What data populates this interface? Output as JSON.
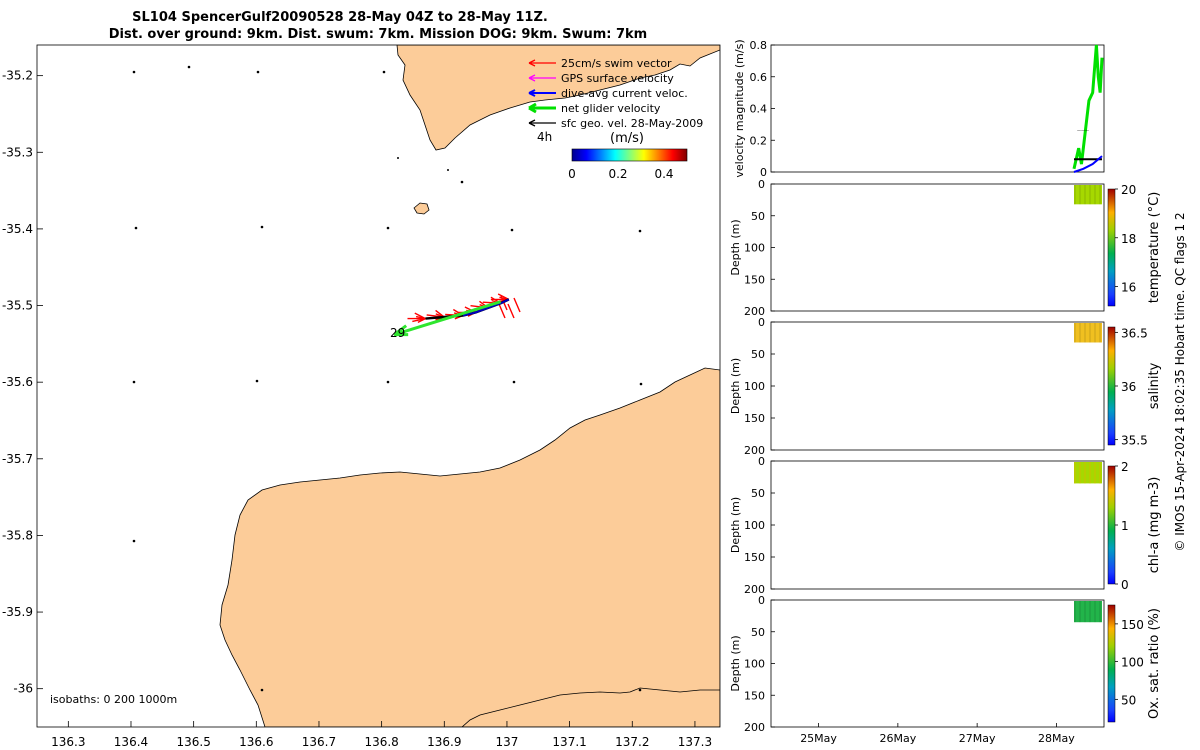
{
  "chart_data": [
    {
      "type": "map",
      "title_line1": "SL104 SpencerGulf20090528 28-May 04Z to 28-May 11Z.",
      "title_line2": "Dist. over ground: 9km. Dist. swum: 7km. Mission DOG: 9km. Swum: 7km",
      "x_ticks": [
        "136.3",
        "136.4",
        "136.5",
        "136.6",
        "136.7",
        "136.8",
        "136.9",
        "137",
        "137.1",
        "137.2",
        "137.3"
      ],
      "x_tick_values": [
        136.3,
        136.4,
        136.5,
        136.6,
        136.7,
        136.8,
        136.9,
        137.0,
        137.1,
        137.2,
        137.3
      ],
      "y_ticks": [
        "-35.2",
        "-35.3",
        "-35.4",
        "-35.5",
        "-35.6",
        "-35.7",
        "-35.8",
        "-35.9",
        "-36"
      ],
      "y_tick_values": [
        -35.2,
        -35.3,
        -35.4,
        -35.5,
        -35.6,
        -35.7,
        -35.8,
        -35.9,
        -36.0
      ],
      "xlim": [
        136.25,
        137.34
      ],
      "ylim": [
        -36.05,
        -35.16
      ],
      "legend": [
        {
          "label": "25cm/s swim vector",
          "color": "#ff0000"
        },
        {
          "label": "GPS surface velocity",
          "color": "#ff00ff"
        },
        {
          "label": "dive-avg current veloc.",
          "color": "#0000ff"
        },
        {
          "label": "net glider velocity",
          "color": "#00e000"
        },
        {
          "label": "sfc geo. vel. 28-May-2009",
          "color": "#000000"
        }
      ],
      "time_label": "4h",
      "colorbar_title": "(m/s)",
      "colorbar_ticks": [
        "0",
        "0.2",
        "0.4"
      ],
      "colorbar_range": [
        0,
        0.5
      ],
      "track_start_label": "29",
      "isobaths_label": "isobaths: 0   200  1000m",
      "track": [
        [
          137.003,
          -35.492
        ],
        [
          136.99,
          -35.497
        ],
        [
          136.97,
          -35.503
        ],
        [
          136.95,
          -35.509
        ],
        [
          136.93,
          -35.513
        ],
        [
          136.9,
          -35.515
        ],
        [
          136.87,
          -35.517
        ]
      ],
      "net_velocity_arrow": {
        "from": [
          136.99,
          -35.495
        ],
        "to": [
          136.82,
          -35.538
        ]
      },
      "land_color": "#fccc99"
    },
    {
      "type": "line",
      "ylabel": "velocity magnitude (m/s)",
      "y_ticks": [
        "0",
        "0.2",
        "0.4",
        "0.6",
        "0.8"
      ],
      "ylim": [
        0,
        0.8
      ],
      "series": [
        {
          "color": "#00e000",
          "values": [
            [
              28.2,
              0.02
            ],
            [
              28.25,
              0.15
            ],
            [
              28.28,
              0.05
            ],
            [
              28.32,
              0.25
            ],
            [
              28.36,
              0.45
            ],
            [
              28.4,
              0.5
            ],
            [
              28.42,
              0.65
            ],
            [
              28.44,
              0.8
            ],
            [
              28.46,
              0.6
            ],
            [
              28.48,
              0.5
            ],
            [
              28.5,
              0.72
            ]
          ]
        },
        {
          "color": "#000000",
          "values": [
            [
              28.2,
              0.08
            ],
            [
              28.5,
              0.08
            ]
          ]
        },
        {
          "color": "#0000ff",
          "values": [
            [
              28.2,
              0.0
            ],
            [
              28.3,
              0.02
            ],
            [
              28.4,
              0.05
            ],
            [
              28.5,
              0.1
            ]
          ]
        }
      ]
    },
    {
      "type": "heatmap",
      "ylabel": "Depth (m)",
      "y_ticks": [
        "0",
        "50",
        "100",
        "150",
        "200"
      ],
      "ylim": [
        200,
        0
      ],
      "colorbar_label": "temperature (°C)",
      "colorbar_ticks": [
        "20",
        "18",
        "16"
      ],
      "colorbar_range": [
        15.2,
        20.0
      ],
      "value": 18.2
    },
    {
      "type": "heatmap",
      "ylabel": "Depth (m)",
      "y_ticks": [
        "0",
        "50",
        "100",
        "150",
        "200"
      ],
      "ylim": [
        200,
        0
      ],
      "colorbar_label": "salinity",
      "colorbar_ticks": [
        "36.5",
        "36",
        "35.5"
      ],
      "colorbar_range": [
        35.45,
        36.55
      ],
      "value": 36.28
    },
    {
      "type": "heatmap",
      "ylabel": "Depth (m)",
      "y_ticks": [
        "0",
        "50",
        "100",
        "150",
        "200"
      ],
      "ylim": [
        200,
        0
      ],
      "colorbar_label": "chl-a (mg m-3)",
      "colorbar_ticks": [
        "2",
        "1",
        "0"
      ],
      "colorbar_range": [
        0,
        2
      ],
      "value": 1.3
    },
    {
      "type": "heatmap",
      "ylabel": "Depth (m)",
      "y_ticks": [
        "0",
        "50",
        "100",
        "150",
        "200"
      ],
      "ylim": [
        200,
        0
      ],
      "colorbar_label": "Ox. sat. ratio (%)",
      "colorbar_ticks": [
        "150",
        "100",
        "50"
      ],
      "colorbar_range": [
        20,
        175
      ],
      "value": 95,
      "x_ticks": [
        "25May",
        "26May",
        "27May",
        "28May"
      ],
      "x_tick_values": [
        25,
        26,
        27,
        28
      ],
      "xlim": [
        24.4,
        28.6
      ]
    }
  ],
  "footer": "© IMOS 15-Apr-2024 18:02:35 Hobart time. QC flags 1  2"
}
